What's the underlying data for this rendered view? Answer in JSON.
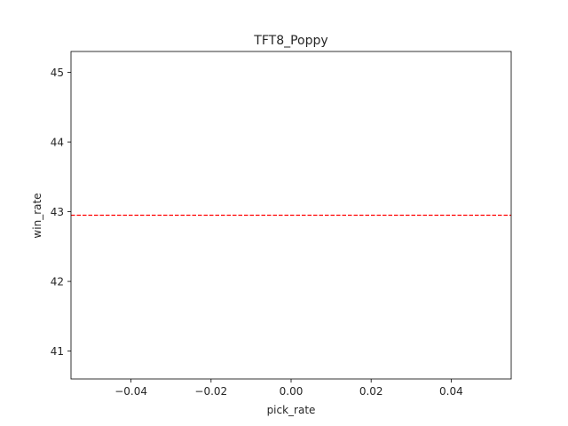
{
  "chart_data": {
    "type": "line",
    "title": "TFT8_Poppy",
    "xlabel": "pick_rate",
    "ylabel": "win_rate",
    "xlim": [
      -0.055,
      0.055
    ],
    "ylim": [
      40.6,
      45.3
    ],
    "x_ticks": [
      {
        "value": -0.04,
        "label": "−0.04"
      },
      {
        "value": -0.02,
        "label": "−0.02"
      },
      {
        "value": 0.0,
        "label": "0.00"
      },
      {
        "value": 0.02,
        "label": "0.02"
      },
      {
        "value": 0.04,
        "label": "0.04"
      }
    ],
    "y_ticks": [
      {
        "value": 41,
        "label": "41"
      },
      {
        "value": 42,
        "label": "42"
      },
      {
        "value": 43,
        "label": "43"
      },
      {
        "value": 44,
        "label": "44"
      },
      {
        "value": 45,
        "label": "45"
      }
    ],
    "hlines": [
      {
        "y": 42.95,
        "color": "#ff0000",
        "style": "dashed"
      }
    ],
    "series": [],
    "grid": false
  }
}
